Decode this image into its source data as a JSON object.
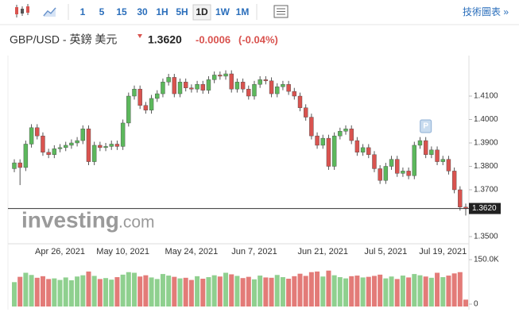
{
  "toolbar": {
    "intervals": [
      "1",
      "5",
      "15",
      "30",
      "1H",
      "5H",
      "1D",
      "1W",
      "1M"
    ],
    "active": "1D",
    "link": "技術圖表 »"
  },
  "header": {
    "symbol": "GBP/USD - 英鎊 美元",
    "price": "1.3620",
    "change": "-0.0006",
    "change_pct": "(-0.04%)"
  },
  "watermark": {
    "brand": "investing",
    "suffix": ".com"
  },
  "chart_data": {
    "type": "candlestick",
    "categories": [
      null,
      null,
      null,
      null,
      null,
      null,
      null,
      null,
      "Apr 26, 2021",
      null,
      null,
      null,
      null,
      null,
      null,
      null,
      null,
      null,
      null,
      "May 10, 2021",
      null,
      null,
      null,
      null,
      null,
      null,
      null,
      null,
      null,
      null,
      null,
      "May 24, 2021",
      null,
      null,
      null,
      null,
      null,
      null,
      null,
      null,
      null,
      null,
      "Jun 7, 2021",
      null,
      null,
      null,
      null,
      null,
      null,
      null,
      null,
      null,
      null,
      null,
      "Jun 21, 2021",
      null,
      null,
      null,
      null,
      null,
      null,
      null,
      null,
      null,
      null,
      "Jul 5, 2021",
      null,
      null,
      null,
      null,
      null,
      null,
      null,
      null,
      null,
      "Jul 19, 2021",
      null,
      null,
      null,
      null
    ],
    "open": [
      1.379,
      1.3815,
      1.3795,
      1.3895,
      1.3965,
      1.393,
      1.386,
      1.385,
      1.3875,
      1.388,
      1.389,
      1.39,
      1.391,
      1.396,
      1.382,
      1.389,
      1.388,
      1.3885,
      1.3895,
      1.3885,
      1.3985,
      1.41,
      1.413,
      1.406,
      1.404,
      1.409,
      1.411,
      1.416,
      1.418,
      1.411,
      1.416,
      1.4135,
      1.413,
      1.415,
      1.4125,
      1.417,
      1.419,
      1.4185,
      1.4195,
      1.413,
      1.416,
      1.413,
      1.41,
      1.415,
      1.417,
      1.4165,
      1.411,
      1.414,
      1.415,
      1.412,
      1.41,
      1.405,
      1.401,
      1.393,
      1.389,
      1.392,
      1.38,
      1.393,
      1.395,
      1.396,
      1.391,
      1.386,
      1.388,
      1.385,
      1.379,
      1.374,
      1.38,
      1.383,
      1.377,
      1.378,
      1.376,
      1.389,
      1.391,
      1.385,
      1.387,
      1.382,
      1.383,
      1.378,
      1.37,
      1.3626
    ],
    "high": [
      1.383,
      1.383,
      1.391,
      1.398,
      1.398,
      1.3945,
      1.3875,
      1.389,
      1.3895,
      1.3905,
      1.3915,
      1.3925,
      1.3975,
      1.3975,
      1.3905,
      1.3905,
      1.39,
      1.391,
      1.391,
      1.4,
      1.4115,
      1.4145,
      1.4145,
      1.4075,
      1.4105,
      1.4125,
      1.4175,
      1.4195,
      1.4195,
      1.4175,
      1.4175,
      1.415,
      1.4165,
      1.4165,
      1.4185,
      1.4205,
      1.4205,
      1.421,
      1.421,
      1.4175,
      1.4175,
      1.4145,
      1.4165,
      1.4185,
      1.4185,
      1.418,
      1.4155,
      1.4165,
      1.4165,
      1.4135,
      1.4115,
      1.4065,
      1.4025,
      1.3945,
      1.3935,
      1.3935,
      1.3945,
      1.3965,
      1.3975,
      1.3975,
      1.3925,
      1.3895,
      1.3895,
      1.3865,
      1.3805,
      1.3815,
      1.3845,
      1.3845,
      1.3795,
      1.3795,
      1.3905,
      1.3925,
      1.3925,
      1.3885,
      1.3885,
      1.3845,
      1.3845,
      1.3795,
      1.3715,
      1.3641
    ],
    "low": [
      1.3775,
      1.372,
      1.378,
      1.388,
      1.3915,
      1.3845,
      1.3835,
      1.3835,
      1.386,
      1.3865,
      1.3875,
      1.3885,
      1.3895,
      1.3805,
      1.3805,
      1.3865,
      1.3865,
      1.387,
      1.387,
      1.387,
      1.397,
      1.4085,
      1.4045,
      1.4025,
      1.4025,
      1.4075,
      1.4095,
      1.4145,
      1.4095,
      1.4095,
      1.412,
      1.4115,
      1.4115,
      1.411,
      1.411,
      1.4155,
      1.417,
      1.417,
      1.4115,
      1.4115,
      1.4115,
      1.4085,
      1.4085,
      1.4135,
      1.415,
      1.4095,
      1.4095,
      1.4125,
      1.4105,
      1.4085,
      1.4035,
      1.3995,
      1.3915,
      1.3875,
      1.3875,
      1.3785,
      1.3785,
      1.3915,
      1.3935,
      1.3895,
      1.3845,
      1.3845,
      1.3835,
      1.3775,
      1.3725,
      1.3725,
      1.3785,
      1.3755,
      1.3755,
      1.3745,
      1.3745,
      1.3875,
      1.3835,
      1.3835,
      1.3805,
      1.3805,
      1.3765,
      1.3685,
      1.3611,
      1.359
    ],
    "close": [
      1.3815,
      1.3795,
      1.3895,
      1.3965,
      1.393,
      1.386,
      1.385,
      1.3875,
      1.388,
      1.389,
      1.39,
      1.391,
      1.396,
      1.382,
      1.389,
      1.388,
      1.3885,
      1.3895,
      1.3885,
      1.3985,
      1.41,
      1.413,
      1.406,
      1.404,
      1.409,
      1.411,
      1.416,
      1.418,
      1.411,
      1.416,
      1.4135,
      1.413,
      1.415,
      1.4125,
      1.417,
      1.419,
      1.4185,
      1.4195,
      1.413,
      1.416,
      1.413,
      1.41,
      1.415,
      1.417,
      1.4165,
      1.411,
      1.414,
      1.415,
      1.412,
      1.41,
      1.405,
      1.401,
      1.393,
      1.389,
      1.392,
      1.38,
      1.393,
      1.395,
      1.396,
      1.391,
      1.386,
      1.388,
      1.385,
      1.379,
      1.374,
      1.38,
      1.383,
      1.377,
      1.378,
      1.376,
      1.389,
      1.391,
      1.385,
      1.387,
      1.382,
      1.383,
      1.378,
      1.37,
      1.3626,
      1.362
    ],
    "up_color": "#5cb85c",
    "down_color": "#d9534f",
    "ylim": [
      1.3466,
      1.4256
    ],
    "yticks": [
      {
        "value": 1.35,
        "label": "1.3500"
      },
      {
        "value": 1.37,
        "label": "1.3700"
      },
      {
        "value": 1.38,
        "label": "1.3800"
      },
      {
        "value": 1.39,
        "label": "1.3900"
      },
      {
        "value": 1.4,
        "label": "1.4000"
      },
      {
        "value": 1.41,
        "label": "1.4100"
      }
    ],
    "annotation": "P",
    "volume": {
      "values": [
        78000,
        95000,
        108000,
        101000,
        92000,
        97000,
        88000,
        90000,
        85000,
        93000,
        84000,
        96000,
        100000,
        112000,
        98000,
        88000,
        91000,
        86000,
        94000,
        102000,
        110000,
        108000,
        96000,
        100000,
        93000,
        88000,
        104000,
        99000,
        95000,
        90000,
        92000,
        85000,
        97000,
        89000,
        94000,
        100000,
        96000,
        108000,
        103000,
        98000,
        91000,
        95000,
        87000,
        99000,
        93000,
        92000,
        101000,
        94000,
        89000,
        97000,
        105000,
        98000,
        110000,
        112000,
        96000,
        115000,
        100000,
        94000,
        90000,
        97000,
        99000,
        93000,
        95000,
        98000,
        102000,
        90000,
        96000,
        88000,
        99000,
        93000,
        104000,
        100000,
        96000,
        92000,
        108000,
        94000,
        99000,
        106000,
        110000,
        22000
      ],
      "ylim": [
        0,
        150000
      ],
      "yticks": [
        {
          "value": 150000,
          "label": "150.0K"
        },
        0
      ],
      "up_color": "#8fd08f",
      "down_color": "#e37b78"
    }
  }
}
